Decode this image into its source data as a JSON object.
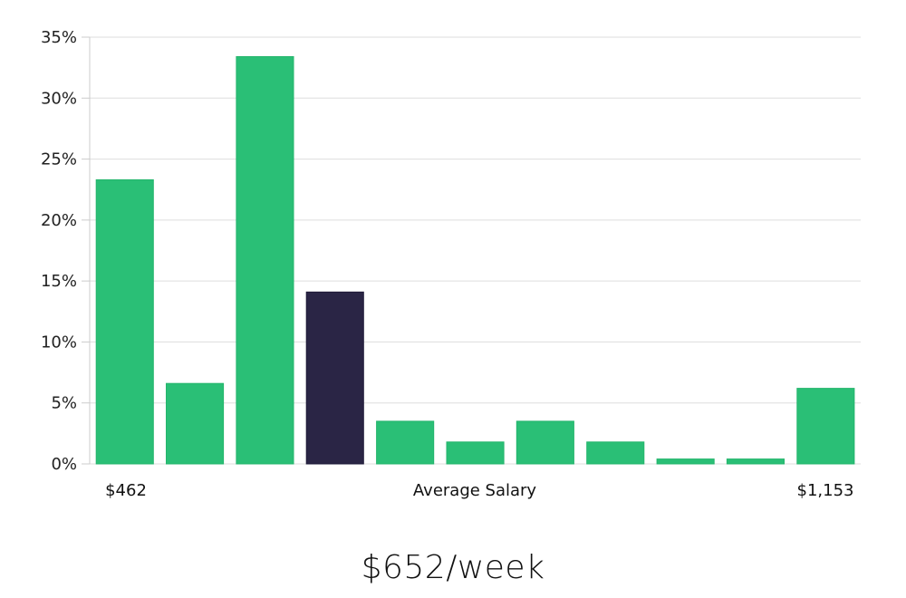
{
  "chart_data": {
    "type": "bar",
    "values": [
      23.3,
      6.6,
      33.4,
      14.1,
      3.5,
      1.8,
      3.5,
      1.8,
      0.4,
      0.4,
      6.2
    ],
    "highlight_index": 3,
    "ylim": [
      0,
      35
    ],
    "yticks": [
      "0%",
      "5%",
      "10%",
      "15%",
      "20%",
      "25%",
      "30%",
      "35%"
    ],
    "ytick_values": [
      0,
      5,
      10,
      15,
      20,
      25,
      30,
      35
    ],
    "x_min_label": "$462",
    "x_max_label": "$1,153",
    "xlabel": "Average Salary",
    "grid": true,
    "colors": {
      "bar": "#2abf76",
      "highlight": "#2a2545",
      "grid": "#dddddd",
      "axis": "#cccccc"
    }
  },
  "summary": {
    "salary": "$652/week"
  }
}
